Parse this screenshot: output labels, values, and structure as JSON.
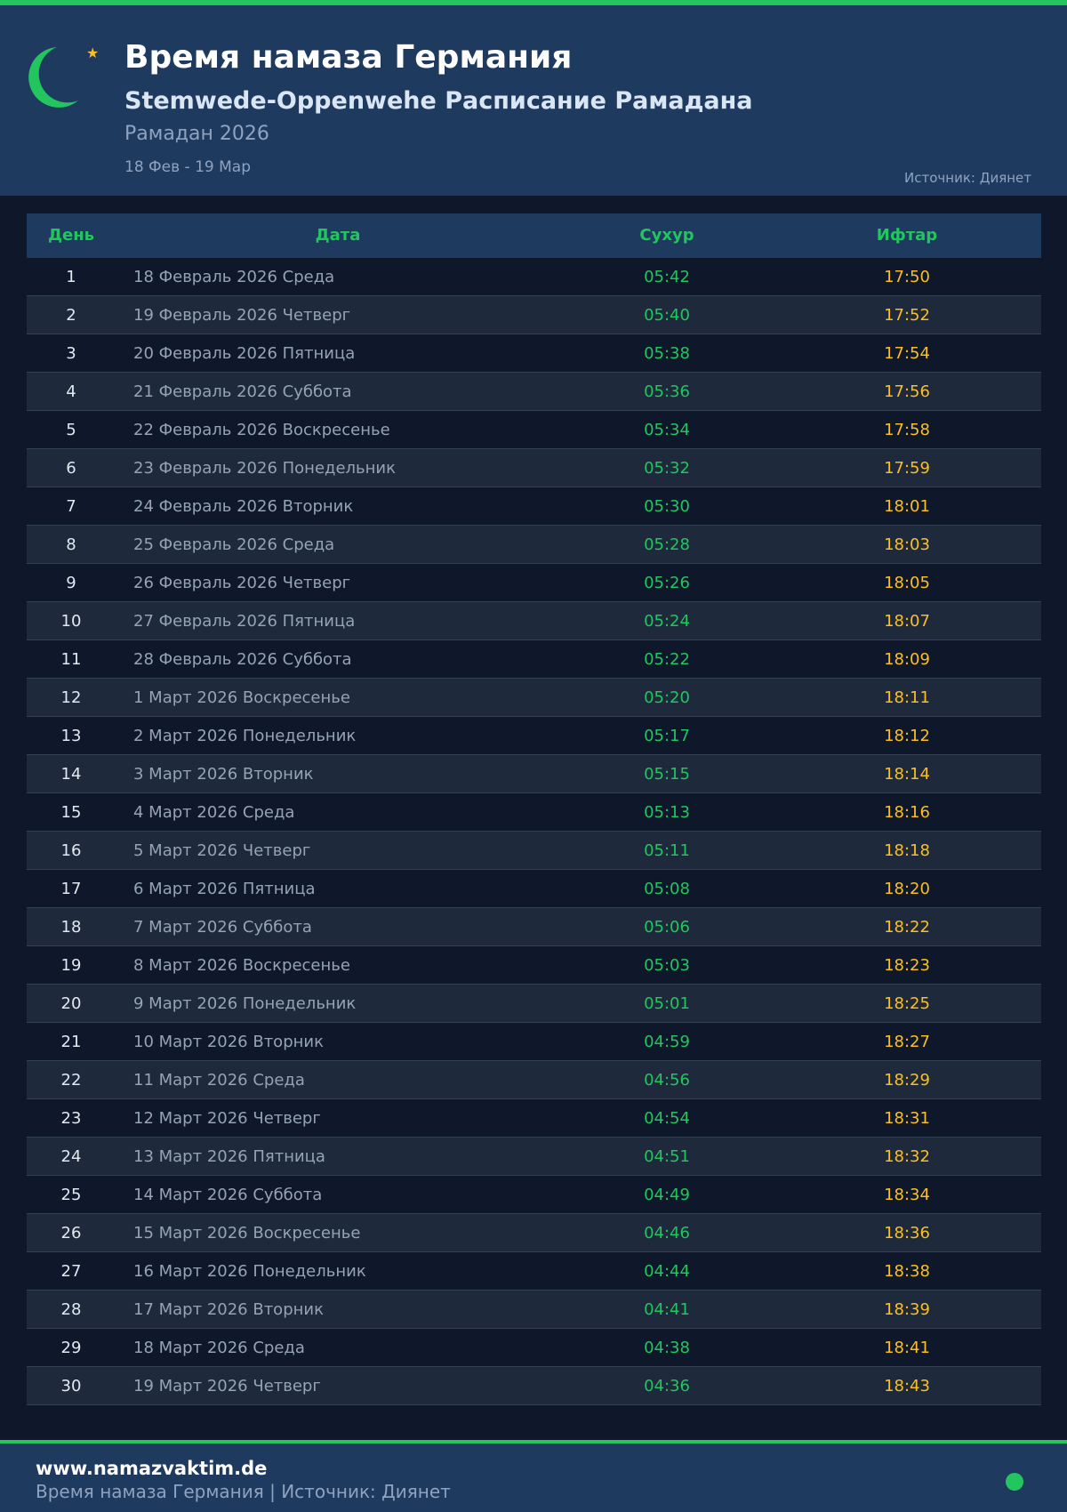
{
  "header": {
    "title": "Время намаза Германия",
    "subtitle": "Stemwede-Oppenwehe Расписание Рамадана",
    "year": "Рамадан 2026",
    "range": "18 Фев - 19 Мар",
    "source": "Источник: Диянет"
  },
  "colors": {
    "accent": "#22c55e",
    "iftar": "#fbbf24",
    "header_bg": "#1e3a5f",
    "page_bg": "#0f172a"
  },
  "icons": {
    "logo": "crescent-moon-icon",
    "star": "star-icon",
    "status": "status-dot-icon"
  },
  "table": {
    "columns": [
      "День",
      "Дата",
      "Сухур",
      "Ифтар"
    ],
    "rows": [
      [
        "1",
        "18 Февраль 2026 Среда",
        "05:42",
        "17:50"
      ],
      [
        "2",
        "19 Февраль 2026 Четверг",
        "05:40",
        "17:52"
      ],
      [
        "3",
        "20 Февраль 2026 Пятница",
        "05:38",
        "17:54"
      ],
      [
        "4",
        "21 Февраль 2026 Суббота",
        "05:36",
        "17:56"
      ],
      [
        "5",
        "22 Февраль 2026 Воскресенье",
        "05:34",
        "17:58"
      ],
      [
        "6",
        "23 Февраль 2026 Понедельник",
        "05:32",
        "17:59"
      ],
      [
        "7",
        "24 Февраль 2026 Вторник",
        "05:30",
        "18:01"
      ],
      [
        "8",
        "25 Февраль 2026 Среда",
        "05:28",
        "18:03"
      ],
      [
        "9",
        "26 Февраль 2026 Четверг",
        "05:26",
        "18:05"
      ],
      [
        "10",
        "27 Февраль 2026 Пятница",
        "05:24",
        "18:07"
      ],
      [
        "11",
        "28 Февраль 2026 Суббота",
        "05:22",
        "18:09"
      ],
      [
        "12",
        "1 Март 2026 Воскресенье",
        "05:20",
        "18:11"
      ],
      [
        "13",
        "2 Март 2026 Понедельник",
        "05:17",
        "18:12"
      ],
      [
        "14",
        "3 Март 2026 Вторник",
        "05:15",
        "18:14"
      ],
      [
        "15",
        "4 Март 2026 Среда",
        "05:13",
        "18:16"
      ],
      [
        "16",
        "5 Март 2026 Четверг",
        "05:11",
        "18:18"
      ],
      [
        "17",
        "6 Март 2026 Пятница",
        "05:08",
        "18:20"
      ],
      [
        "18",
        "7 Март 2026 Суббота",
        "05:06",
        "18:22"
      ],
      [
        "19",
        "8 Март 2026 Воскресенье",
        "05:03",
        "18:23"
      ],
      [
        "20",
        "9 Март 2026 Понедельник",
        "05:01",
        "18:25"
      ],
      [
        "21",
        "10 Март 2026 Вторник",
        "04:59",
        "18:27"
      ],
      [
        "22",
        "11 Март 2026 Среда",
        "04:56",
        "18:29"
      ],
      [
        "23",
        "12 Март 2026 Четверг",
        "04:54",
        "18:31"
      ],
      [
        "24",
        "13 Март 2026 Пятница",
        "04:51",
        "18:32"
      ],
      [
        "25",
        "14 Март 2026 Суббота",
        "04:49",
        "18:34"
      ],
      [
        "26",
        "15 Март 2026 Воскресенье",
        "04:46",
        "18:36"
      ],
      [
        "27",
        "16 Март 2026 Понедельник",
        "04:44",
        "18:38"
      ],
      [
        "28",
        "17 Март 2026 Вторник",
        "04:41",
        "18:39"
      ],
      [
        "29",
        "18 Март 2026 Среда",
        "04:38",
        "18:41"
      ],
      [
        "30",
        "19 Март 2026 Четверг",
        "04:36",
        "18:43"
      ]
    ]
  },
  "footer": {
    "site": "www.namazvaktim.de",
    "text": "Время намаза Германия | Источник: Диянет"
  }
}
